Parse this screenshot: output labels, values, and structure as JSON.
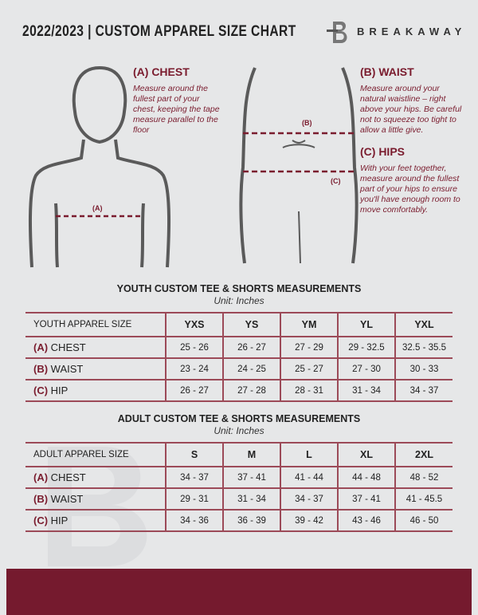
{
  "header": {
    "title": "2022/2023 | CUSTOM APPAREL SIZE CHART",
    "brand": "BREAKAWAY"
  },
  "measure": {
    "chest": {
      "title": "(A) CHEST",
      "desc": "Measure around the fullest part of your chest, keeping the tape measure parallel to the floor",
      "marker": "(A)"
    },
    "waist": {
      "title": "(B) WAIST",
      "desc": "Measure around your natural waistline – right above your hips. Be careful not to squeeze too tight to allow a little give.",
      "marker": "(B)"
    },
    "hips": {
      "title": "(C) HIPS",
      "desc": "With your feet together, measure around the fullest part of your hips to ensure you'll have enough room to move comfortably.",
      "marker": "(C)"
    }
  },
  "youth": {
    "title": "YOUTH CUSTOM TEE & SHORTS MEASUREMENTS",
    "unit": "Unit: Inches",
    "header": "YOUTH APPAREL SIZE",
    "sizes": [
      "YXS",
      "YS",
      "YM",
      "YL",
      "YXL"
    ],
    "rows": [
      {
        "letter": "(A)",
        "label": "CHEST",
        "values": [
          "25 - 26",
          "26 - 27",
          "27 - 29",
          "29 - 32.5",
          "32.5 - 35.5"
        ]
      },
      {
        "letter": "(B)",
        "label": "WAIST",
        "values": [
          "23 - 24",
          "24 - 25",
          "25 - 27",
          "27 - 30",
          "30 - 33"
        ]
      },
      {
        "letter": "(C)",
        "label": "HIP",
        "values": [
          "26 - 27",
          "27 - 28",
          "28 - 31",
          "31 - 34",
          "34 - 37"
        ]
      }
    ]
  },
  "adult": {
    "title": "ADULT CUSTOM TEE & SHORTS MEASUREMENTS",
    "unit": "Unit: Inches",
    "header": "ADULT APPAREL SIZE",
    "sizes": [
      "S",
      "M",
      "L",
      "XL",
      "2XL"
    ],
    "rows": [
      {
        "letter": "(A)",
        "label": "CHEST",
        "values": [
          "34 - 37",
          "37 - 41",
          "41 - 44",
          "44 - 48",
          "48 - 52"
        ]
      },
      {
        "letter": "(B)",
        "label": "WAIST",
        "values": [
          "29 - 31",
          "31 - 34",
          "34 - 37",
          "37 - 41",
          "41 - 45.5"
        ]
      },
      {
        "letter": "(C)",
        "label": "HIP",
        "values": [
          "34 - 36",
          "36 - 39",
          "39 - 42",
          "43 - 46",
          "46 - 50"
        ]
      }
    ]
  },
  "colors": {
    "accent": "#751a2e",
    "background": "#e6e7e8"
  }
}
